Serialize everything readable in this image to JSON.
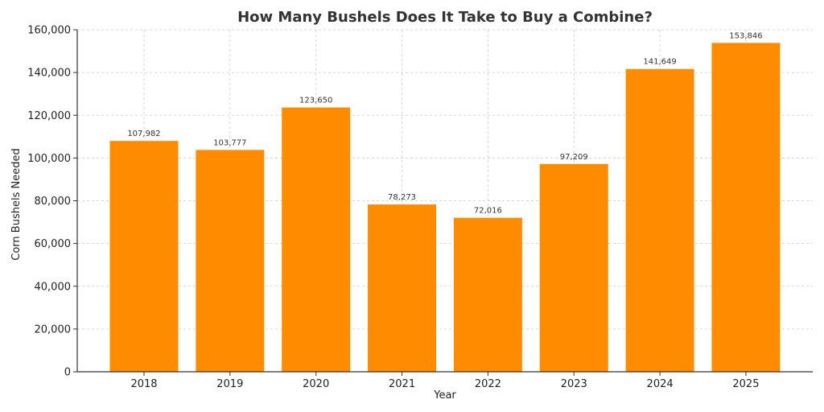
{
  "chart_data": {
    "type": "bar",
    "title": "How Many Bushels Does It Take to Buy a Combine?",
    "xlabel": "Year",
    "ylabel": "Corn Bushels Needed",
    "categories": [
      "2018",
      "2019",
      "2020",
      "2021",
      "2022",
      "2023",
      "2024",
      "2025"
    ],
    "values": [
      107982,
      103777,
      123650,
      78273,
      72016,
      97209,
      141649,
      153846
    ],
    "data_labels": [
      "107,982",
      "103,777",
      "123,650",
      "78,273",
      "72,016",
      "97,209",
      "141,649",
      "153,846"
    ],
    "ylim": [
      0,
      160000
    ],
    "yticks": [
      0,
      20000,
      40000,
      60000,
      80000,
      100000,
      120000,
      140000,
      160000
    ],
    "ytick_labels": [
      "0",
      "20,000",
      "40,000",
      "60,000",
      "80,000",
      "100,000",
      "120,000",
      "140,000",
      "160,000"
    ],
    "grid": true,
    "bar_color": "#ff8c00"
  }
}
